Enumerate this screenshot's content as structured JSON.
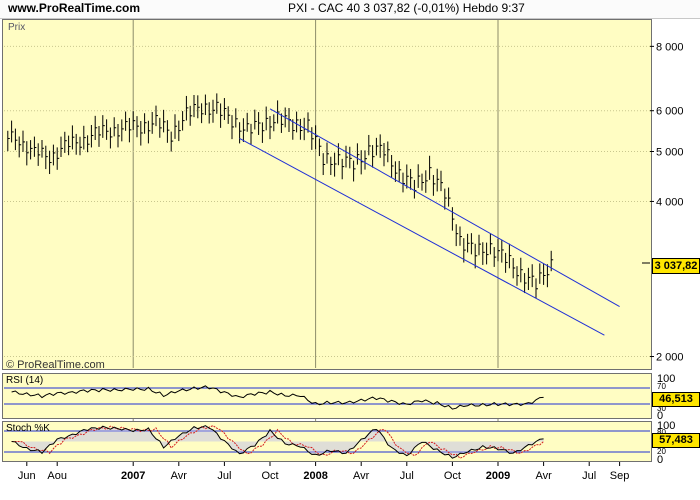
{
  "header": {
    "site": "www.ProRealTime.com",
    "quote": "PXI - CAC 40    3 037,82 (-0,01%)    Hebdo  9:37"
  },
  "main_panel": {
    "label": "Prix",
    "watermark": "© ProRealTime.com",
    "last_price_label": "3 037,82"
  },
  "rsi_panel": {
    "label": "RSI (14)",
    "value_label": "46,513",
    "scale_top": "100",
    "scale_70": "70",
    "scale_30": "30",
    "scale_0": "0"
  },
  "stoch_panel": {
    "label": "Stoch %K",
    "value_label": "57,483",
    "scale_top": "100",
    "scale_80": "80",
    "scale_20": "20",
    "scale_0": "0"
  },
  "colors": {
    "background": "#fffdc3",
    "price": "#000000",
    "channel": "#1f2fd6",
    "rsi_band": "#1f2fd6",
    "stoch_k": "#000000",
    "stoch_d": "#d22020",
    "stoch_fill": "#b9b9ef"
  },
  "chart_data": [
    {
      "type": "ohlc",
      "title": "PXI - CAC 40",
      "timeframe": "Hebdo",
      "y_scale": "log",
      "ylim": [
        1900,
        9000
      ],
      "yticks": [
        2000,
        4000,
        5000,
        6000,
        8000
      ],
      "ytick_labels": [
        "2 000",
        "4 000",
        "5 000",
        "6 000",
        "8 000"
      ],
      "x_ticks": [
        "Jun",
        "Aou",
        "2007",
        "Avr",
        "Jul",
        "Oct",
        "2008",
        "Avr",
        "Jul",
        "Oct",
        "2009",
        "Avr",
        "Jul",
        "Sep"
      ],
      "last_value": 3037.82,
      "last_change_pct": -0.01,
      "series": {
        "name": "Prix",
        "x": [
          "2006-05",
          "2006-06",
          "2006-07",
          "2006-08",
          "2006-09",
          "2006-10",
          "2006-11",
          "2006-12",
          "2007-01",
          "2007-02",
          "2007-03",
          "2007-04",
          "2007-05",
          "2007-06",
          "2007-07",
          "2007-08",
          "2007-09",
          "2007-10",
          "2007-11",
          "2007-12",
          "2008-01",
          "2008-02",
          "2008-03",
          "2008-04",
          "2008-05",
          "2008-06",
          "2008-07",
          "2008-08",
          "2008-09",
          "2008-10",
          "2008-11",
          "2008-12",
          "2009-01",
          "2009-02",
          "2009-03",
          "2009-04"
        ],
        "close": [
          5300,
          4950,
          4900,
          5100,
          5250,
          5400,
          5500,
          5550,
          5600,
          5700,
          5400,
          5900,
          6100,
          6050,
          5750,
          5500,
          5650,
          5800,
          5650,
          5600,
          4850,
          4800,
          4750,
          5000,
          5050,
          4500,
          4300,
          4550,
          4150,
          3350,
          3200,
          3250,
          3100,
          2900,
          2750,
          3037.82
        ]
      },
      "channel": {
        "upper": {
          "start": {
            "x": "2007-10",
            "y": 6050
          },
          "end": {
            "x": "2009-09",
            "y": 2500
          }
        },
        "lower": {
          "start": {
            "x": "2007-08",
            "y": 5300
          },
          "end": {
            "x": "2009-08",
            "y": 2200
          }
        }
      }
    },
    {
      "type": "line",
      "title": "RSI (14)",
      "ylim": [
        0,
        100
      ],
      "bands": [
        30,
        70
      ],
      "last_value": 46.513,
      "series": [
        {
          "name": "RSI (14)",
          "values": [
            60,
            55,
            50,
            56,
            60,
            63,
            65,
            66,
            66,
            68,
            52,
            62,
            70,
            72,
            58,
            48,
            55,
            60,
            52,
            50,
            30,
            34,
            32,
            40,
            45,
            36,
            30,
            38,
            32,
            20,
            26,
            28,
            30,
            28,
            32,
            46.513
          ]
        }
      ]
    },
    {
      "type": "line",
      "title": "Stoch %K",
      "ylim": [
        0,
        100
      ],
      "bands": [
        20,
        80
      ],
      "last_value": 57.483,
      "series": [
        {
          "name": "Stoch %K",
          "values": [
            50,
            30,
            20,
            55,
            70,
            85,
            90,
            88,
            80,
            85,
            35,
            65,
            90,
            92,
            50,
            15,
            40,
            80,
            45,
            35,
            10,
            25,
            15,
            55,
            88,
            30,
            10,
            50,
            25,
            5,
            20,
            35,
            30,
            15,
            40,
            57.483
          ]
        }
      ]
    }
  ]
}
